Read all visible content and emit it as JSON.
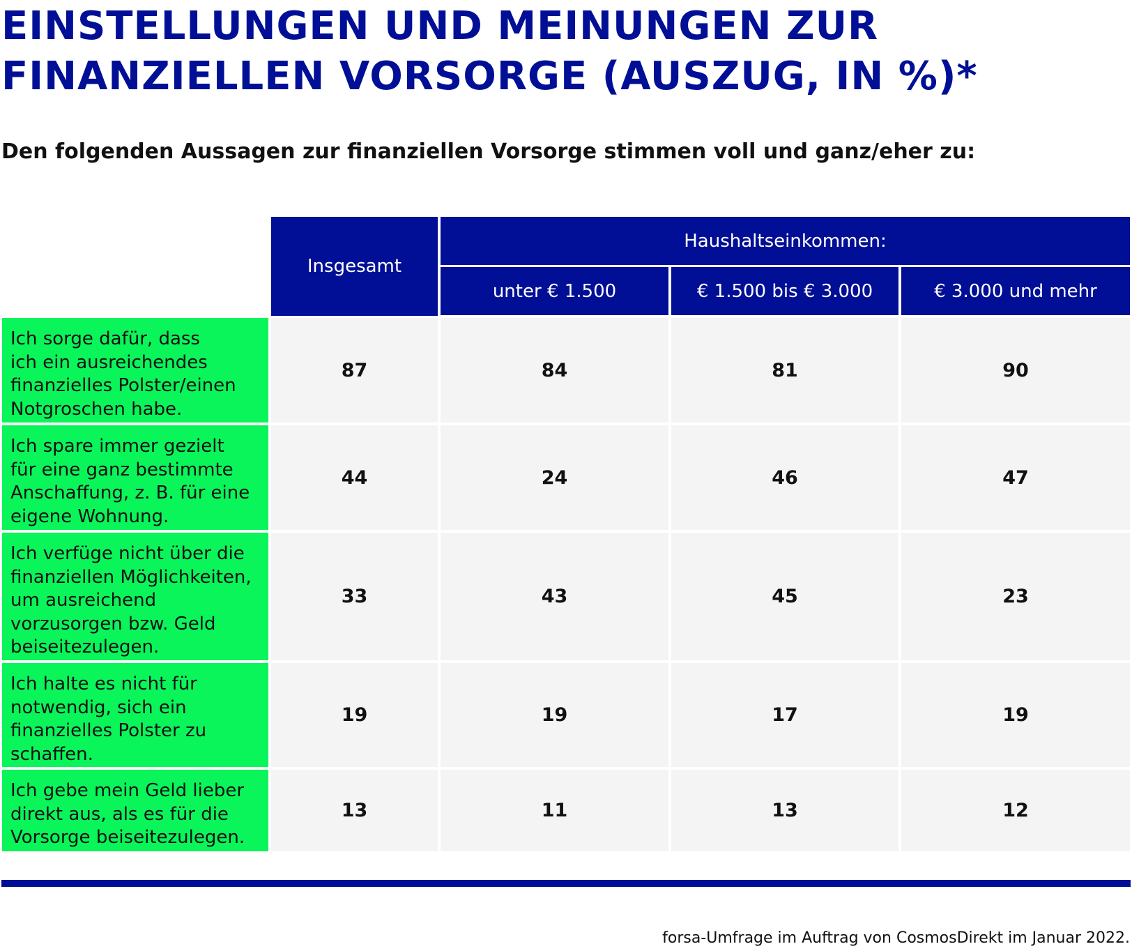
{
  "title_lines": [
    "EINSTELLUNGEN UND MEINUNGEN ZUR",
    "FINANZIELLEN VORSORGE (AUSZUG, IN %)*"
  ],
  "subtitle": "Den folgenden Aussagen zur finanziellen Vorsorge stimmen voll und ganz/eher zu:",
  "source": "forsa-Umfrage im Auftrag von CosmosDirekt im Januar 2022.",
  "colors": {
    "header_bg": "#000f96",
    "label_bg": "#0af55a",
    "cell_bg": "#f4f4f4",
    "title": "#000f96"
  },
  "chart_data": {
    "type": "table",
    "title": "EINSTELLUNGEN UND MEINUNGEN ZUR FINANZIELLEN VORSORGE (AUSZUG, IN %)*",
    "subtitle": "Den folgenden Aussagen zur finanziellen Vorsorge stimmen voll und ganz/eher zu:",
    "header_group": "Haushaltseinkommen:",
    "columns": [
      "Insgesamt",
      "unter € 1.500",
      "€ 1.500 bis € 3.000",
      "€ 3.000 und mehr"
    ],
    "rows": [
      {
        "label": "Ich sorge dafür, dass ich ein ausreichendes finanzielles Polster/einen Notgroschen habe.",
        "label_lines": [
          "Ich sorge dafür, dass",
          "ich ein ausreichendes",
          "finanzielles Polster/einen",
          "Notgroschen habe."
        ],
        "values": [
          87,
          84,
          81,
          90
        ]
      },
      {
        "label": "Ich spare immer gezielt für eine ganz bestimmte Anschaffung, z. B. für eine eigene Wohnung.",
        "label_lines": [
          "Ich spare immer gezielt",
          "für eine ganz bestimmte",
          "Anschaffung, z. B. für eine",
          "eigene Wohnung."
        ],
        "values": [
          44,
          24,
          46,
          47
        ]
      },
      {
        "label": "Ich verfüge nicht über die finanziellen Möglichkeiten, um ausreichend vorzusorgen bzw. Geld beiseitezulegen.",
        "label_lines": [
          "Ich verfüge nicht über die",
          "finanziellen Möglichkeiten,",
          "um ausreichend",
          "vorzusorgen bzw. Geld",
          "beiseitezulegen."
        ],
        "values": [
          33,
          43,
          45,
          23
        ]
      },
      {
        "label": "Ich halte es nicht für notwendig, sich ein finanzielles Polster zu schaffen.",
        "label_lines": [
          "Ich halte es nicht für",
          "notwendig, sich ein",
          "finanzielles Polster zu",
          "schaffen."
        ],
        "values": [
          19,
          19,
          17,
          19
        ]
      },
      {
        "label": "Ich gebe mein Geld lieber direkt aus, als es für die Vorsorge beiseitezulegen.",
        "label_lines": [
          "Ich gebe mein Geld lieber",
          "direkt aus, als es für die",
          "Vorsorge beiseitezulegen."
        ],
        "values": [
          13,
          11,
          13,
          12
        ]
      }
    ]
  }
}
